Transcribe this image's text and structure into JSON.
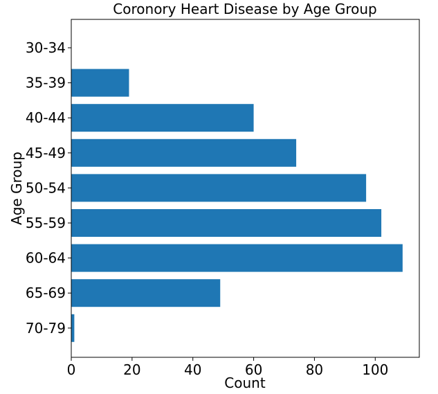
{
  "chart_data": {
    "type": "bar",
    "orientation": "horizontal",
    "title": "Coronory Heart Disease by Age Group",
    "xlabel": "Count",
    "ylabel": "Age Group",
    "categories": [
      "30-34",
      "35-39",
      "40-44",
      "45-49",
      "50-54",
      "55-59",
      "60-64",
      "65-69",
      "70-79"
    ],
    "values": [
      0,
      19,
      60,
      74,
      97,
      102,
      109,
      49,
      1
    ],
    "xticks": [
      0,
      20,
      40,
      60,
      80,
      100
    ],
    "xlim": [
      0,
      114.5
    ],
    "grid": false,
    "bar_color": "#1f77b4"
  }
}
